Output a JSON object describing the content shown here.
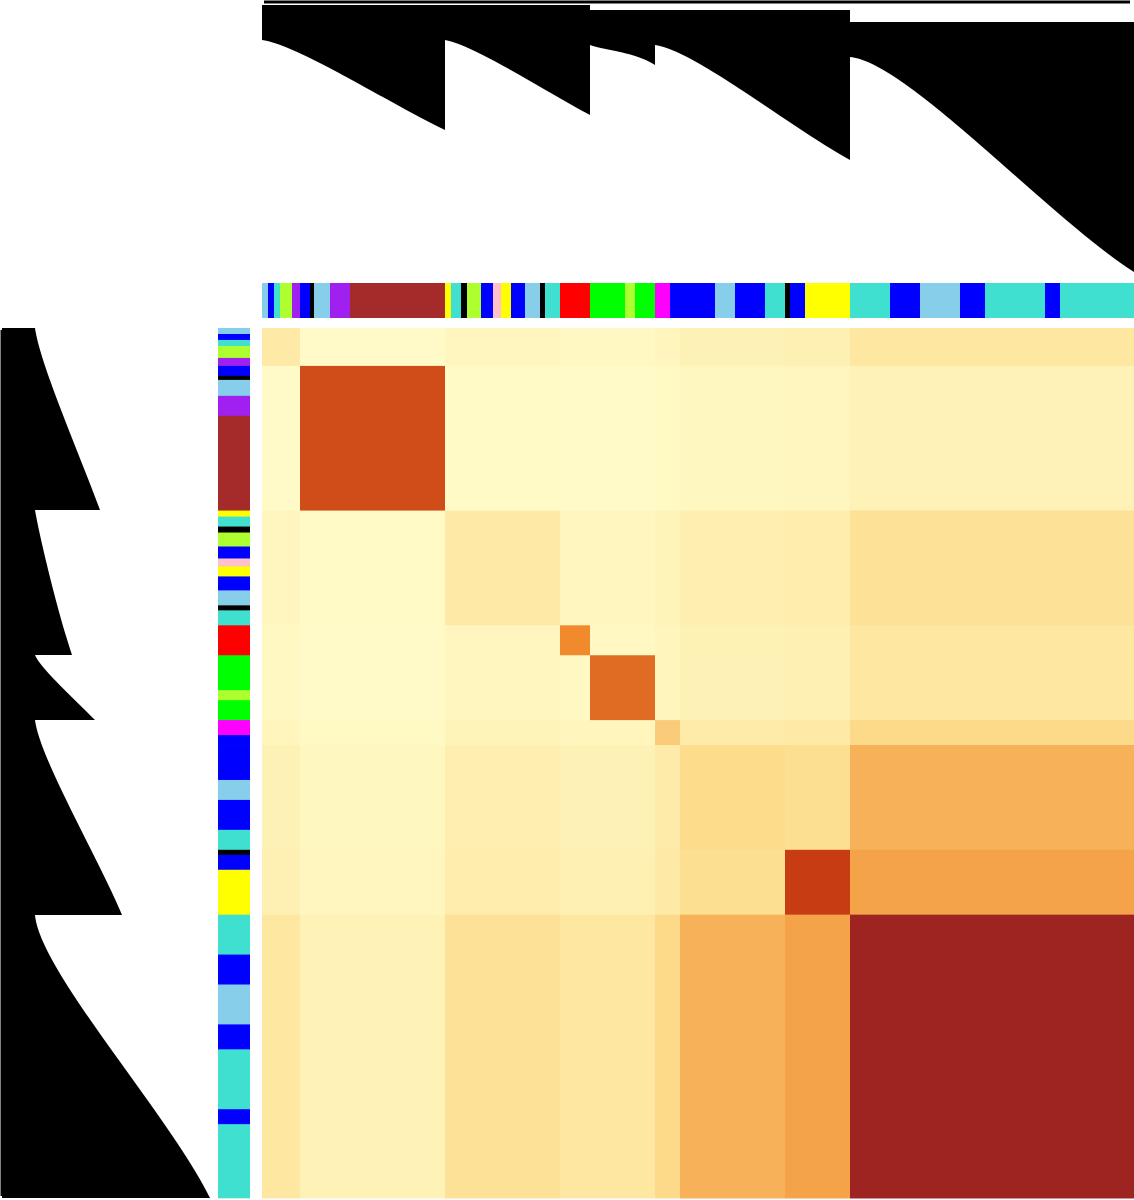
{
  "chart_data": {
    "type": "heatmap",
    "segments": [
      {
        "color": "#87ceeb",
        "size": 6
      },
      {
        "color": "#0000ff",
        "size": 6
      },
      {
        "color": "#40e0d0",
        "size": 6
      },
      {
        "color": "#adff2f",
        "size": 12
      },
      {
        "color": "#a020f0",
        "size": 8
      },
      {
        "color": "#0000ff",
        "size": 10
      },
      {
        "color": "#000000",
        "size": 4
      },
      {
        "color": "#87ceeb",
        "size": 16
      },
      {
        "color": "#a020f0",
        "size": 20
      },
      {
        "color": "#a52a2a",
        "size": 95
      },
      {
        "color": "#ffff00",
        "size": 6
      },
      {
        "color": "#40e0d0",
        "size": 10
      },
      {
        "color": "#000000",
        "size": 6
      },
      {
        "color": "#adff2f",
        "size": 14
      },
      {
        "color": "#0000ff",
        "size": 12
      },
      {
        "color": "#ffc0cb",
        "size": 8
      },
      {
        "color": "#ffff00",
        "size": 10
      },
      {
        "color": "#0000ff",
        "size": 14
      },
      {
        "color": "#87ceeb",
        "size": 15
      },
      {
        "color": "#000000",
        "size": 5
      },
      {
        "color": "#40e0d0",
        "size": 15
      },
      {
        "color": "#ff0000",
        "size": 30
      },
      {
        "color": "#00ff00",
        "size": 35
      },
      {
        "color": "#adff2f",
        "size": 10
      },
      {
        "color": "#00ff00",
        "size": 20
      },
      {
        "color": "#ff00ff",
        "size": 15
      },
      {
        "color": "#0000ff",
        "size": 10
      },
      {
        "color": "#0000ff",
        "size": 35
      },
      {
        "color": "#87ceeb",
        "size": 20
      },
      {
        "color": "#0000ff",
        "size": 30
      },
      {
        "color": "#40e0d0",
        "size": 20
      },
      {
        "color": "#000000",
        "size": 5
      },
      {
        "color": "#0000ff",
        "size": 15
      },
      {
        "color": "#ffff00",
        "size": 45
      },
      {
        "color": "#40e0d0",
        "size": 40
      },
      {
        "color": "#0000ff",
        "size": 30
      },
      {
        "color": "#87ceeb",
        "size": 40
      },
      {
        "color": "#0000ff",
        "size": 25
      },
      {
        "color": "#40e0d0",
        "size": 60
      },
      {
        "color": "#0000ff",
        "size": 15
      },
      {
        "color": "#40e0d0",
        "size": 74
      }
    ],
    "blocks": [
      {
        "size": 38,
        "within": 0.15,
        "conn": 0.2
      },
      {
        "size": 145,
        "within": 0.7,
        "conn": 0.1
      },
      {
        "size": 115,
        "within": 0.15,
        "conn": 0.25
      },
      {
        "size": 30,
        "within": 0.5,
        "conn": 0.2
      },
      {
        "size": 65,
        "within": 0.6,
        "conn": 0.2
      },
      {
        "size": 25,
        "within": 0.3,
        "conn": 0.3
      },
      {
        "size": 105,
        "within": 0.25,
        "conn": 0.45
      },
      {
        "size": 65,
        "within": 0.75,
        "conn": 0.5
      },
      {
        "size": 284,
        "within": 0.9,
        "conn": 0.85
      }
    ]
  }
}
